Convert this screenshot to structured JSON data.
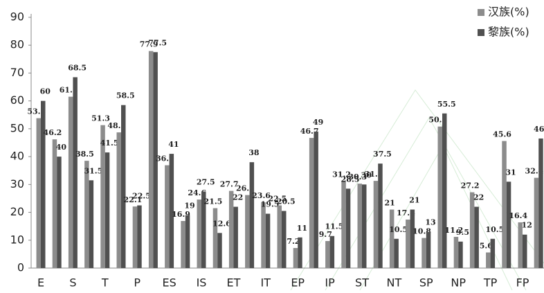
{
  "chart_data": {
    "type": "bar",
    "categories": [
      "E",
      null,
      "S",
      null,
      "T",
      null,
      "P",
      null,
      "ES",
      null,
      "IS",
      null,
      "ET",
      null,
      "IT",
      null,
      "EP",
      null,
      "IP",
      null,
      "ST",
      null,
      "NT",
      null,
      "SP",
      null,
      "NP",
      null,
      "TP",
      null,
      "FP",
      null
    ],
    "series": [
      {
        "name": "汉族(%)",
        "color": "#8c8c8c",
        "values": [
          53.8,
          46.2,
          61.5,
          38.5,
          51.3,
          48.7,
          22.1,
          77.9,
          36.9,
          16.9,
          24.6,
          21.5,
          27.7,
          26.2,
          23.6,
          22.5,
          7.2,
          46.7,
          9.7,
          31.2,
          30.3,
          31.3,
          21,
          17.4,
          10.8,
          50.8,
          11.2,
          27.2,
          5.6,
          45.6,
          16.4,
          32.4
        ]
      },
      {
        "name": "黎族(%)",
        "color": "#505050",
        "values": [
          60,
          40,
          68.5,
          31.5,
          41.5,
          58.5,
          22.5,
          77.5,
          41,
          19,
          27.5,
          12.6,
          22,
          38,
          19.5,
          20.5,
          11,
          49,
          11.5,
          28.5,
          30,
          37.5,
          10.5,
          21,
          13,
          55.5,
          9.5,
          22,
          10.5,
          31,
          12,
          46.5
        ]
      }
    ],
    "ylim": [
      0,
      90
    ],
    "yticks": [
      0,
      10,
      20,
      30,
      40,
      50,
      60,
      70,
      80,
      90
    ],
    "legend": "top-right"
  }
}
